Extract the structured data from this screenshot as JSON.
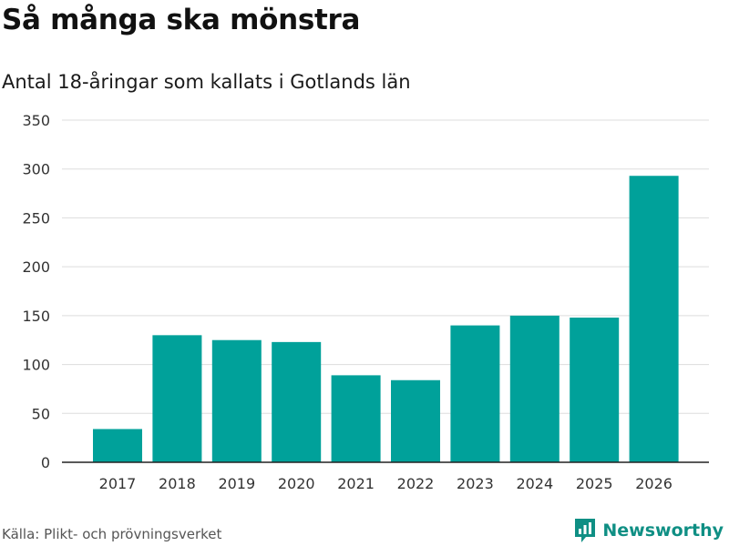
{
  "chart_data": {
    "type": "bar",
    "title": "Så många ska mönstra",
    "subtitle": "Antal 18-åringar som kallats i Gotlands län",
    "categories": [
      "2017",
      "2018",
      "2019",
      "2020",
      "2021",
      "2022",
      "2023",
      "2024",
      "2025",
      "2026"
    ],
    "values": [
      34,
      130,
      125,
      123,
      89,
      84,
      140,
      150,
      148,
      293
    ],
    "ylim": [
      0,
      350
    ],
    "yticks": [
      0,
      50,
      100,
      150,
      200,
      250,
      300,
      350
    ],
    "xlabel": "",
    "ylabel": "",
    "grid": true,
    "bar_color": "#00a19a"
  },
  "footer": {
    "source": "Källa: Plikt- och prövningsverket",
    "brand": "Newsworthy",
    "brand_icon": "newsworthy-logo-icon"
  }
}
